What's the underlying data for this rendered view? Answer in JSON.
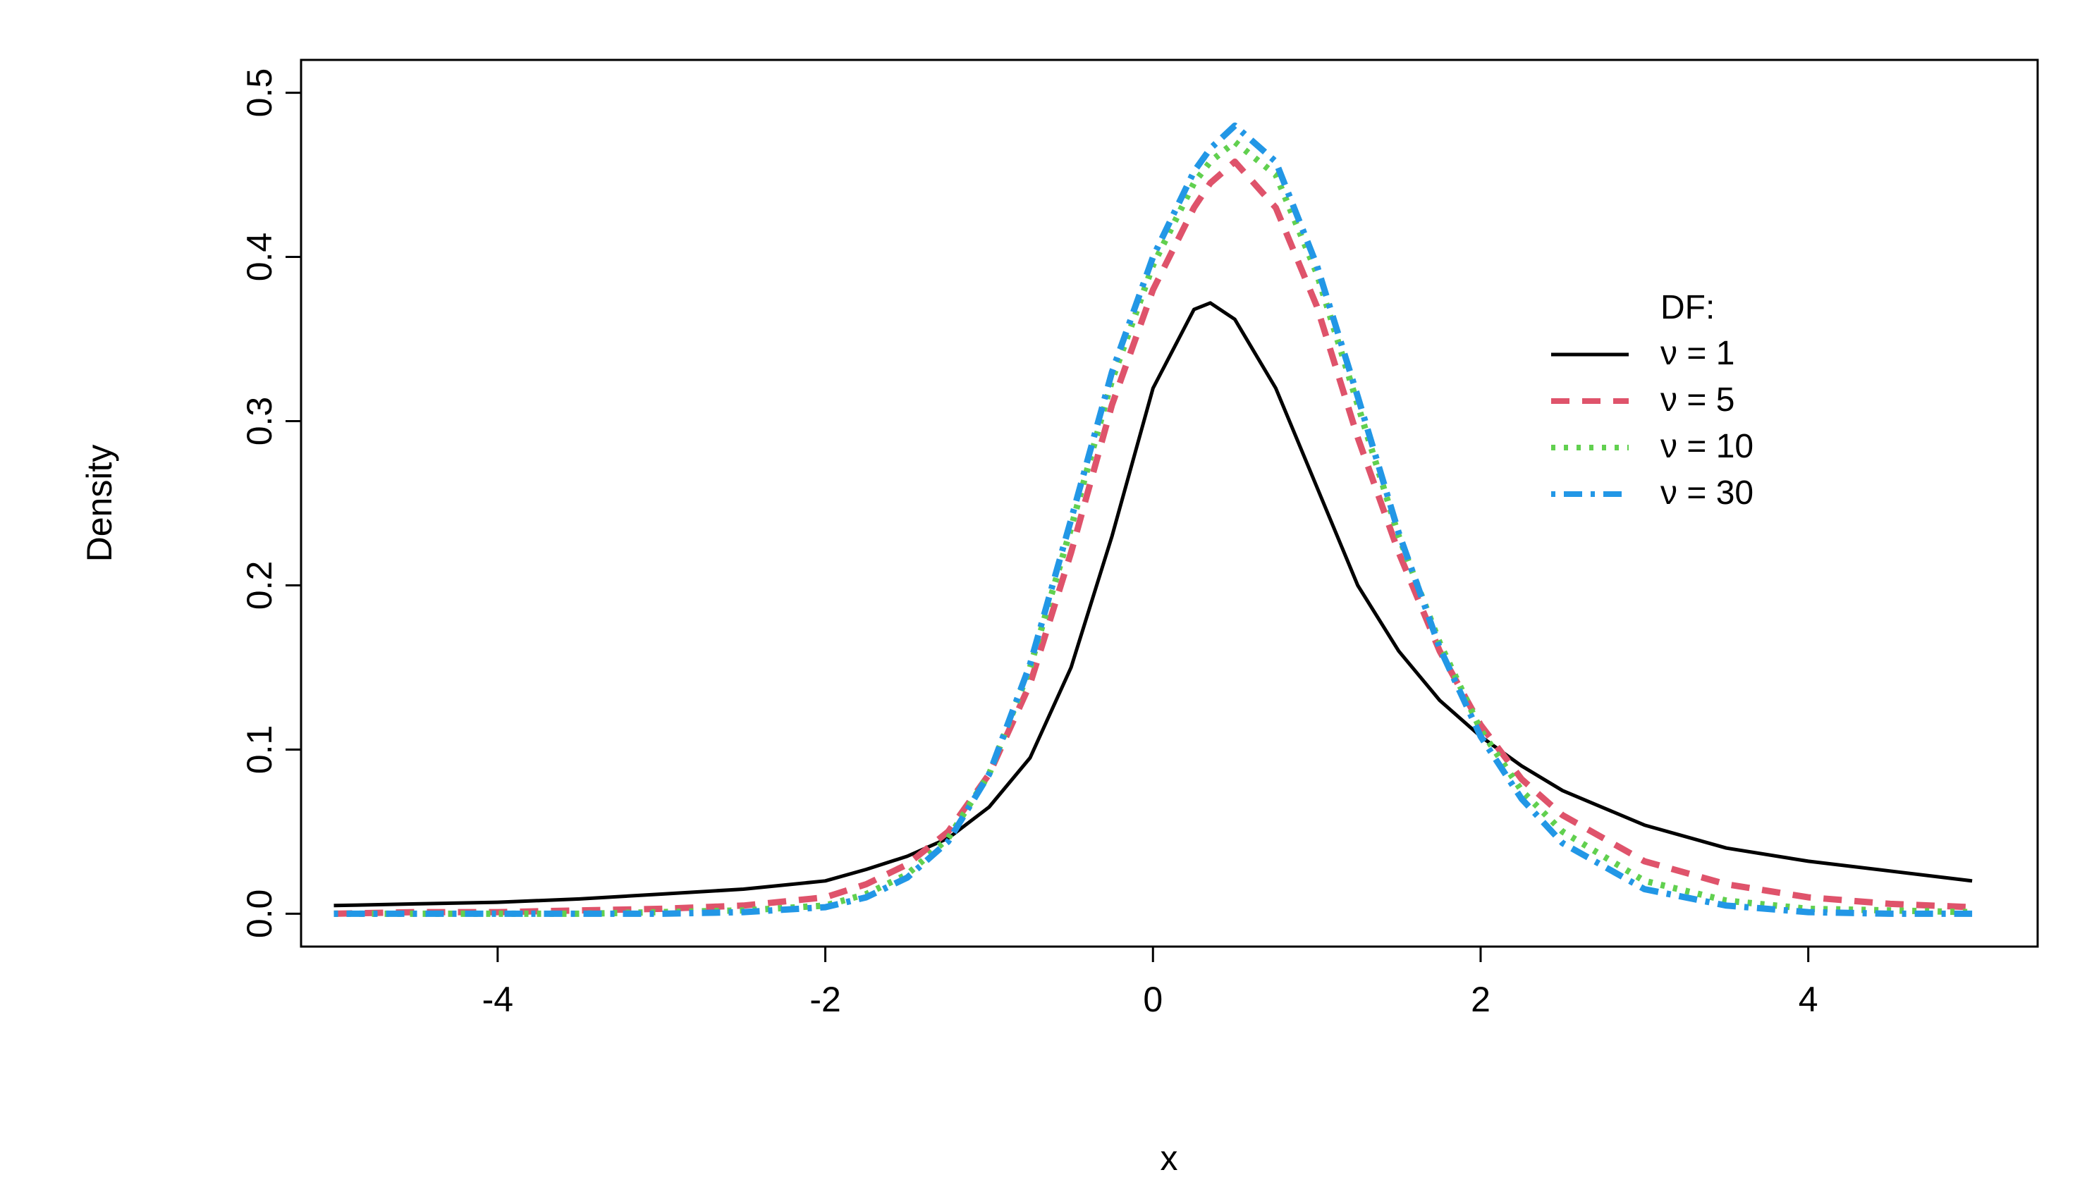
{
  "chart_data": {
    "type": "line",
    "xlabel": "x",
    "ylabel": "Density",
    "xlim": [
      -5.2,
      5.4
    ],
    "ylim": [
      -0.02,
      0.52
    ],
    "xticks": [
      -4,
      -2,
      0,
      2,
      4
    ],
    "xtick_labels": [
      "-4",
      "-2",
      "0",
      "2",
      "4"
    ],
    "yticks": [
      0.0,
      0.1,
      0.2,
      0.3,
      0.4,
      0.5
    ],
    "ytick_labels": [
      "0.0",
      "0.1",
      "0.2",
      "0.3",
      "0.4",
      "0.5"
    ],
    "grid": false,
    "legend": {
      "title": "DF:",
      "position": "right",
      "entries": [
        "ν = 1",
        "ν = 5",
        "ν = 10",
        "ν = 30"
      ]
    },
    "x": [
      -5,
      -4.5,
      -4,
      -3.5,
      -3,
      -2.5,
      -2,
      -1.75,
      -1.5,
      -1.25,
      -1,
      -0.75,
      -0.5,
      -0.25,
      0,
      0.25,
      0.35,
      0.5,
      0.75,
      1,
      1.25,
      1.5,
      1.75,
      2,
      2.25,
      2.5,
      3,
      3.5,
      4,
      4.5,
      5
    ],
    "series": [
      {
        "name": "ν = 1",
        "color": "#000000",
        "style": "solid",
        "values": [
          0.005,
          0.006,
          0.007,
          0.009,
          0.012,
          0.015,
          0.02,
          0.027,
          0.035,
          0.046,
          0.065,
          0.095,
          0.15,
          0.23,
          0.32,
          0.368,
          0.372,
          0.362,
          0.32,
          0.26,
          0.2,
          0.16,
          0.13,
          0.108,
          0.09,
          0.075,
          0.054,
          0.04,
          0.032,
          0.026,
          0.02
        ]
      },
      {
        "name": "ν = 5",
        "color": "#DF536B",
        "style": "dashed",
        "values": [
          0.0,
          0.001,
          0.001,
          0.002,
          0.003,
          0.005,
          0.01,
          0.018,
          0.03,
          0.05,
          0.085,
          0.14,
          0.22,
          0.31,
          0.38,
          0.43,
          0.445,
          0.458,
          0.43,
          0.37,
          0.29,
          0.22,
          0.16,
          0.115,
          0.082,
          0.06,
          0.032,
          0.018,
          0.01,
          0.006,
          0.004
        ]
      },
      {
        "name": "ν = 10",
        "color": "#61D04F",
        "style": "dotted",
        "values": [
          0.0,
          0.0,
          0.0,
          0.0,
          0.001,
          0.002,
          0.005,
          0.012,
          0.024,
          0.046,
          0.085,
          0.15,
          0.235,
          0.325,
          0.395,
          0.445,
          0.458,
          0.47,
          0.45,
          0.39,
          0.31,
          0.23,
          0.165,
          0.112,
          0.075,
          0.05,
          0.02,
          0.008,
          0.003,
          0.002,
          0.001
        ]
      },
      {
        "name": "ν = 30",
        "color": "#2297E6",
        "style": "dotdash",
        "values": [
          0.0,
          0.0,
          0.0,
          0.0,
          0.0,
          0.001,
          0.004,
          0.01,
          0.022,
          0.044,
          0.085,
          0.152,
          0.24,
          0.33,
          0.4,
          0.452,
          0.466,
          0.48,
          0.458,
          0.395,
          0.315,
          0.232,
          0.162,
          0.108,
          0.07,
          0.043,
          0.015,
          0.005,
          0.001,
          0.0,
          0.0
        ]
      }
    ]
  }
}
